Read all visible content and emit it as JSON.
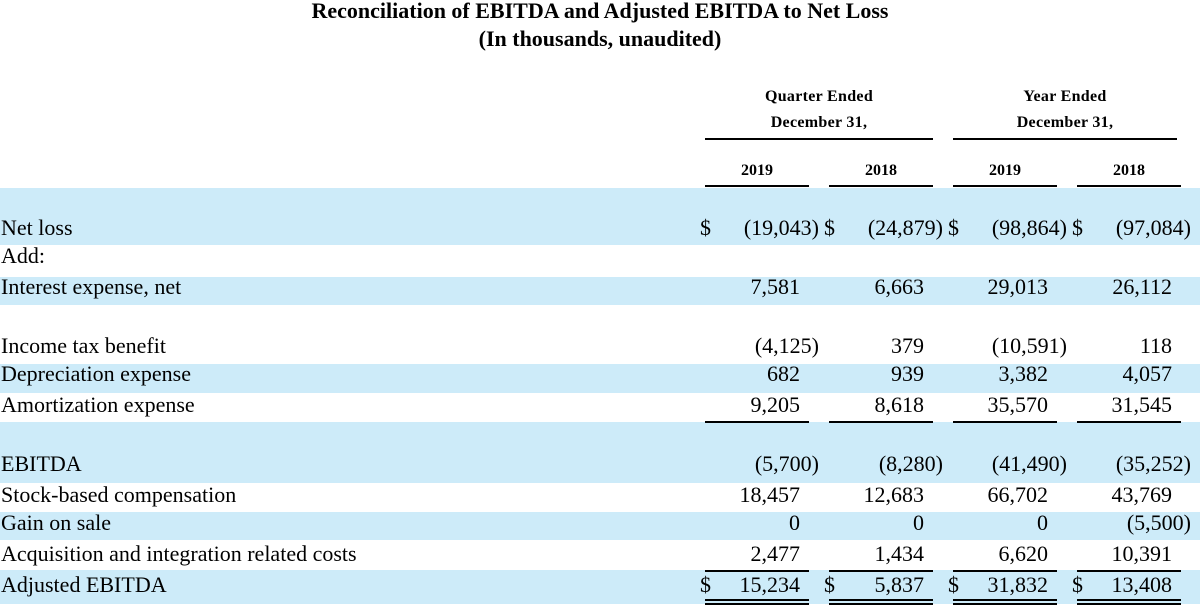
{
  "title": "Reconciliation of EBITDA and Adjusted EBITDA  to Net Loss",
  "subtitle": "(In thousands, unaudited)",
  "period_groups": [
    {
      "line1": "Quarter Ended",
      "line2": "December 31,"
    },
    {
      "line1": "Year  Ended",
      "line2": "December 31,"
    }
  ],
  "years": [
    "2019",
    "2018",
    "2019",
    "2018"
  ],
  "currency_symbol": "$",
  "band_color": "#cdebf9",
  "rows": [
    {
      "label": "Net loss",
      "values": [
        "(19,043)",
        "(24,879)",
        "(98,864)",
        "(97,084)"
      ]
    },
    {
      "label": "Add:",
      "values": [
        "",
        "",
        "",
        ""
      ]
    },
    {
      "label": "Interest expense, net",
      "values": [
        "7,581",
        "6,663",
        "29,013",
        "26,112"
      ]
    },
    {
      "label": "Income tax benefit",
      "values": [
        "(4,125)",
        "379",
        "(10,591)",
        "118"
      ]
    },
    {
      "label": "Depreciation expense",
      "values": [
        "682",
        "939",
        "3,382",
        "4,057"
      ]
    },
    {
      "label": "Amortization expense",
      "values": [
        "9,205",
        "8,618",
        "35,570",
        "31,545"
      ]
    },
    {
      "label": "EBITDA",
      "values": [
        "(5,700)",
        "(8,280)",
        "(41,490)",
        "(35,252)"
      ]
    },
    {
      "label": "Stock-based compensation",
      "values": [
        "18,457",
        "12,683",
        "66,702",
        "43,769"
      ]
    },
    {
      "label": "Gain on sale",
      "values": [
        "0",
        "0",
        "0",
        "(5,500)"
      ]
    },
    {
      "label": "Acquisition and integration related costs",
      "values": [
        "2,477",
        "1,434",
        "6,620",
        "10,391"
      ]
    },
    {
      "label": "Adjusted EBITDA",
      "values": [
        "15,234",
        "5,837",
        "31,832",
        "13,408"
      ]
    }
  ]
}
